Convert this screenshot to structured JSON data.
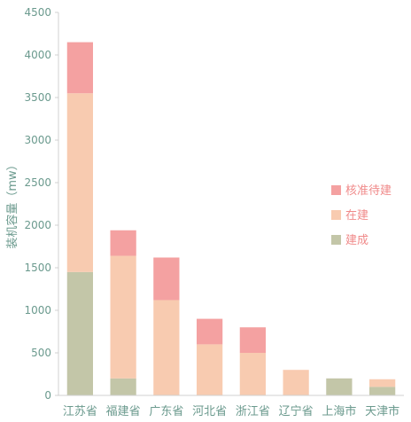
{
  "chart_data": {
    "type": "bar",
    "stacked": true,
    "title": "",
    "xlabel": "",
    "ylabel": "装机容量（mw）",
    "ylim": [
      0,
      4500
    ],
    "yticks": [
      0,
      500,
      1000,
      1500,
      2000,
      2500,
      3000,
      3500,
      4000,
      4500
    ],
    "grid": false,
    "legend_position": "right",
    "categories": [
      "江苏省",
      "福建省",
      "广东省",
      "河北省",
      "浙江省",
      "辽宁省",
      "上海市",
      "天津市"
    ],
    "series": [
      {
        "name": "建成",
        "color": "#c3c6a8",
        "values": [
          1450,
          200,
          0,
          0,
          0,
          0,
          200,
          100
        ]
      },
      {
        "name": "在建",
        "color": "#f8cbb0",
        "values": [
          2100,
          1440,
          1120,
          600,
          500,
          300,
          0,
          90
        ]
      },
      {
        "name": "核准待建",
        "color": "#f4a1a1",
        "values": [
          600,
          300,
          500,
          300,
          300,
          0,
          0,
          0
        ]
      }
    ],
    "legend_order": [
      "核准待建",
      "在建",
      "建成"
    ]
  },
  "colors": {
    "axis_text": "#6b9a8e",
    "axis_line": "#d0d0d0",
    "legend_text": "#f08a8a"
  }
}
